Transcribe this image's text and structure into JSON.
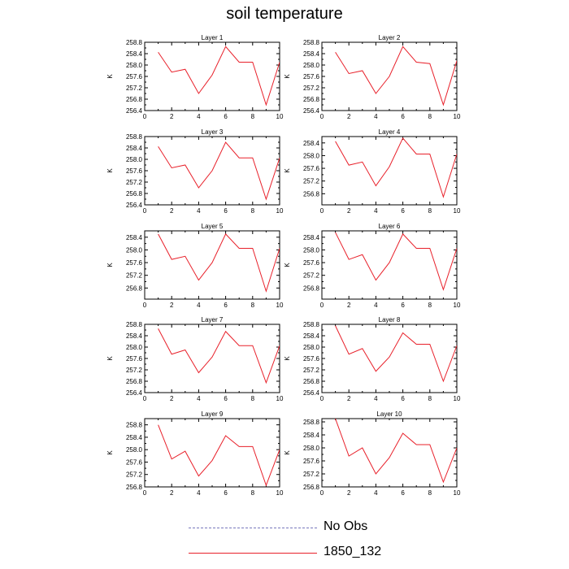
{
  "title": "soil temperature",
  "chart_data": {
    "type": "line",
    "x": [
      1,
      2,
      3,
      4,
      5,
      6,
      7,
      8,
      9,
      10
    ],
    "x_ticks": [
      0,
      2,
      4,
      6,
      8,
      10
    ],
    "xlim": [
      0,
      10
    ],
    "ylabel": "K",
    "grid": false,
    "legend_position": "bottom",
    "legend": [
      {
        "label": "No Obs",
        "color": "#7777bb",
        "style": "dashed"
      },
      {
        "label": "1850_132",
        "color": "#e8202a",
        "style": "solid"
      }
    ],
    "panels": [
      {
        "title": "Layer 1",
        "ylim": [
          256.4,
          258.8
        ],
        "y_ticks": [
          "256.4",
          "256.8",
          "257.2",
          "257.6",
          "258.0",
          "258.4",
          "258.8"
        ],
        "values": [
          258.45,
          257.75,
          257.85,
          257.0,
          257.65,
          258.65,
          258.1,
          258.1,
          256.6,
          258.1
        ]
      },
      {
        "title": "Layer 2",
        "ylim": [
          256.4,
          258.8
        ],
        "y_ticks": [
          "256.4",
          "256.8",
          "257.2",
          "257.6",
          "258.0",
          "258.4",
          "258.8"
        ],
        "values": [
          258.45,
          257.7,
          257.8,
          257.0,
          257.6,
          258.65,
          258.1,
          258.05,
          256.6,
          258.15
        ]
      },
      {
        "title": "Layer 3",
        "ylim": [
          256.4,
          258.8
        ],
        "y_ticks": [
          "256.4",
          "256.8",
          "257.2",
          "257.6",
          "258.0",
          "258.4",
          "258.8"
        ],
        "values": [
          258.45,
          257.7,
          257.8,
          257.0,
          257.6,
          258.6,
          258.05,
          258.05,
          256.6,
          258.05
        ]
      },
      {
        "title": "Layer 4",
        "ylim": [
          256.45,
          258.6
        ],
        "y_ticks": [
          "256.8",
          "257.2",
          "257.6",
          "258.0",
          "258.4"
        ],
        "values": [
          258.45,
          257.7,
          257.8,
          257.05,
          257.65,
          258.55,
          258.05,
          258.05,
          256.7,
          258.05
        ]
      },
      {
        "title": "Layer 5",
        "ylim": [
          256.45,
          258.6
        ],
        "y_ticks": [
          "256.8",
          "257.2",
          "257.6",
          "258.0",
          "258.4"
        ],
        "values": [
          258.5,
          257.7,
          257.8,
          257.05,
          257.6,
          258.5,
          258.05,
          258.05,
          256.7,
          258.05
        ]
      },
      {
        "title": "Layer 6",
        "ylim": [
          256.45,
          258.6
        ],
        "y_ticks": [
          "256.8",
          "257.2",
          "257.6",
          "258.0",
          "258.4"
        ],
        "values": [
          258.55,
          257.7,
          257.85,
          257.05,
          257.6,
          258.5,
          258.05,
          258.05,
          256.75,
          258.05
        ]
      },
      {
        "title": "Layer 7",
        "ylim": [
          256.4,
          258.8
        ],
        "y_ticks": [
          "256.4",
          "256.8",
          "257.2",
          "257.6",
          "258.0",
          "258.4",
          "258.8"
        ],
        "values": [
          258.65,
          257.75,
          257.9,
          257.1,
          257.65,
          258.55,
          258.05,
          258.05,
          256.75,
          258.05
        ]
      },
      {
        "title": "Layer 8",
        "ylim": [
          256.4,
          258.8
        ],
        "y_ticks": [
          "256.4",
          "256.8",
          "257.2",
          "257.6",
          "258.0",
          "258.4",
          "258.8"
        ],
        "values": [
          258.75,
          257.75,
          257.95,
          257.15,
          257.65,
          258.5,
          258.1,
          258.1,
          256.8,
          258.05
        ]
      },
      {
        "title": "Layer 9",
        "ylim": [
          256.8,
          259.0
        ],
        "y_ticks": [
          "256.8",
          "257.2",
          "257.6",
          "258.0",
          "258.4",
          "258.8"
        ],
        "values": [
          258.8,
          257.7,
          257.95,
          257.15,
          257.65,
          258.45,
          258.1,
          258.1,
          256.85,
          258.0
        ]
      },
      {
        "title": "Layer 10",
        "ylim": [
          256.8,
          258.9
        ],
        "y_ticks": [
          "256.8",
          "257.2",
          "257.6",
          "258.0",
          "258.4",
          "258.8"
        ],
        "values": [
          258.9,
          257.75,
          258.0,
          257.2,
          257.7,
          258.45,
          258.1,
          258.1,
          256.95,
          258.0
        ]
      }
    ]
  }
}
